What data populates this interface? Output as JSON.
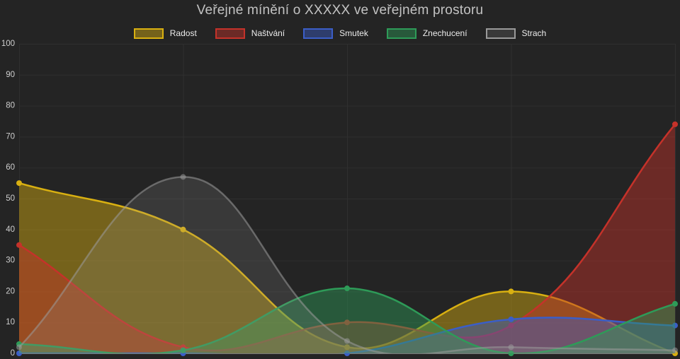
{
  "chart_data": {
    "type": "area",
    "title": "Veřejné mínění o XXXXX ve veřejném prostoru",
    "xlabel": "",
    "ylabel": "",
    "ylim": [
      0,
      100
    ],
    "y_tick_step": 10,
    "y_tick_labels": [
      "0",
      "10",
      "20",
      "30",
      "40",
      "50",
      "60",
      "70",
      "80",
      "90",
      "100"
    ],
    "x_tick_labels_visible": false,
    "x_point_count": 5,
    "grid": true,
    "legend_position": "top",
    "curve": "smooth-spline",
    "series": [
      {
        "name": "Radost",
        "color": "#d9b011",
        "fill_opacity": 0.45,
        "line_opacity": 1,
        "values": [
          55,
          40,
          2,
          20,
          0
        ]
      },
      {
        "name": "Naštvání",
        "color": "#c5322a",
        "fill_opacity": 0.45,
        "line_opacity": 1,
        "values": [
          35,
          2,
          10,
          9,
          74
        ]
      },
      {
        "name": "Smutek",
        "color": "#3b5ec7",
        "fill_opacity": 0.45,
        "line_opacity": 1,
        "values": [
          0,
          0,
          0,
          11,
          9
        ]
      },
      {
        "name": "Znechucení",
        "color": "#2e9b58",
        "fill_opacity": 0.45,
        "line_opacity": 1,
        "values": [
          3,
          1,
          21,
          0,
          16
        ]
      },
      {
        "name": "Strach",
        "color": "#9a9a9a",
        "fill_opacity": 0.18,
        "line_opacity": 0.55,
        "values": [
          2,
          57,
          4,
          2,
          1
        ]
      }
    ],
    "theme": {
      "background": "#242424",
      "grid_color": "#2f2f2f",
      "zero_line_color": "#787878",
      "title_color": "#c3c3c3",
      "tick_label_color": "#cfcfcf",
      "legend_text_color": "#ececec"
    }
  }
}
